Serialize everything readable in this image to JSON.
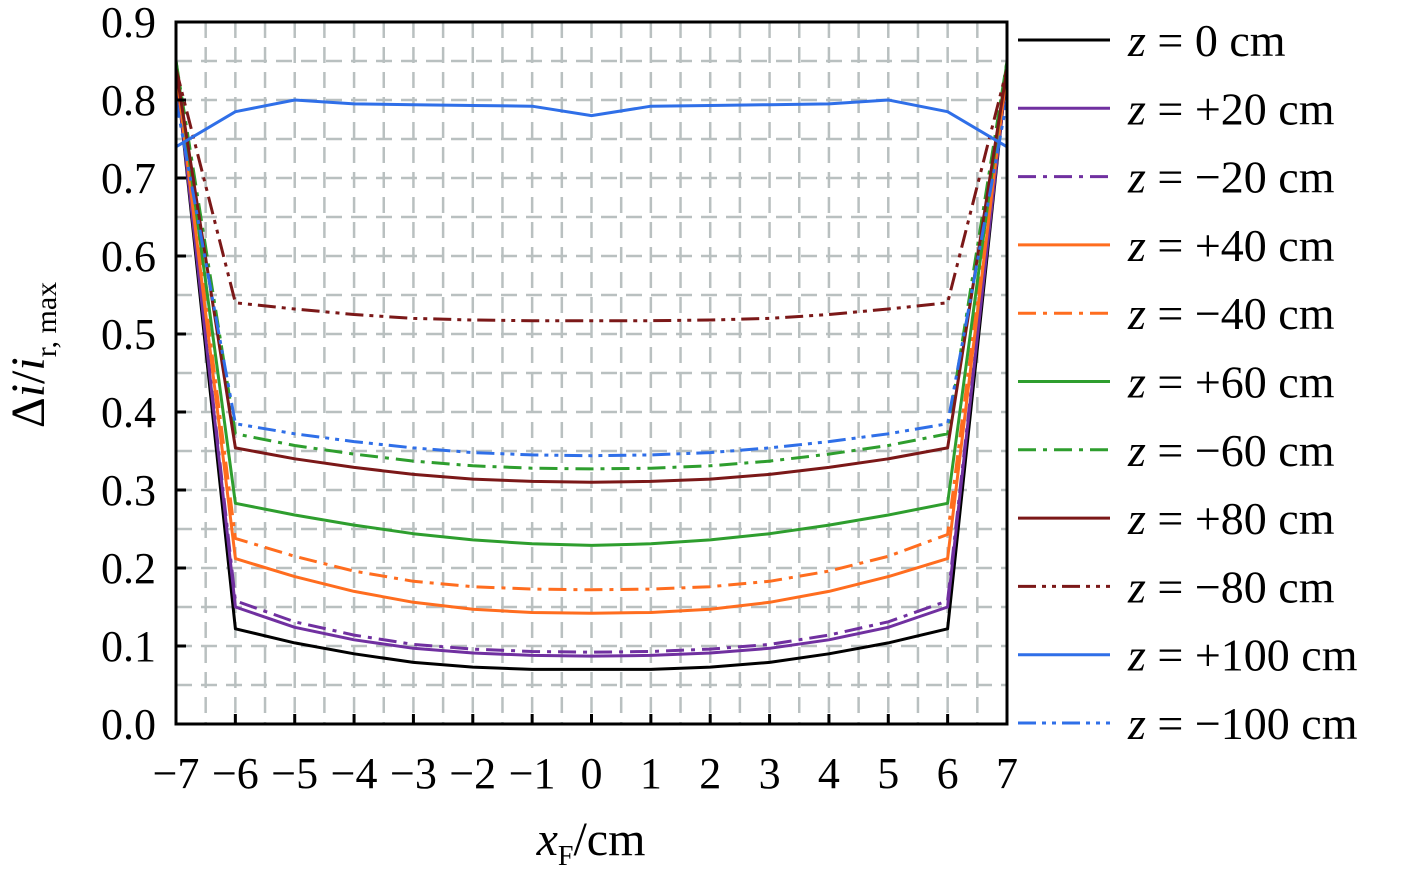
{
  "chart_data": {
    "type": "line",
    "xlabel": {
      "var": "x",
      "sub": "F",
      "unit": "/cm"
    },
    "ylabel": {
      "pre": "Δ",
      "var": "i",
      "mid": "/",
      "var2": "i",
      "sub": "r, max"
    },
    "xlim": [
      -7,
      7
    ],
    "ylim": [
      0,
      0.9
    ],
    "xticks": [
      -7,
      -6,
      -5,
      -4,
      -3,
      -2,
      -1,
      0,
      1,
      2,
      3,
      4,
      5,
      6,
      7
    ],
    "xtick_labels": [
      "−7",
      "−6",
      "−5",
      "−4",
      "−3",
      "−2",
      "−1",
      "0",
      "1",
      "2",
      "3",
      "4",
      "5",
      "6",
      "7"
    ],
    "yticks": [
      0,
      0.1,
      0.2,
      0.3,
      0.4,
      0.5,
      0.6,
      0.7,
      0.8,
      0.9
    ],
    "ytick_labels": [
      "0.0",
      "0.1",
      "0.2",
      "0.3",
      "0.4",
      "0.5",
      "0.6",
      "0.7",
      "0.8",
      "0.9"
    ],
    "grid": "dashed",
    "legend_position": "right",
    "x": [
      -7,
      -6,
      -5,
      -4,
      -3,
      -2,
      -1,
      0,
      1,
      2,
      3,
      4,
      5,
      6,
      7
    ],
    "series": [
      {
        "name": "z = 0 cm",
        "var": "z",
        "value": "= 0 cm",
        "color": "#000000",
        "style": "solid",
        "values": [
          0.84,
          0.122,
          0.104,
          0.09,
          0.079,
          0.073,
          0.07,
          0.07,
          0.07,
          0.073,
          0.079,
          0.09,
          0.104,
          0.122,
          0.84
        ]
      },
      {
        "name": "z = +20 cm",
        "var": "z",
        "value": "= +20 cm",
        "color": "#7030a0",
        "style": "solid",
        "values": [
          0.84,
          0.15,
          0.124,
          0.108,
          0.097,
          0.091,
          0.088,
          0.087,
          0.088,
          0.091,
          0.097,
          0.108,
          0.124,
          0.15,
          0.84
        ]
      },
      {
        "name": "z = −20 cm",
        "var": "z",
        "value": "= −20 cm",
        "color": "#7030a0",
        "style": "dashdot",
        "values": [
          0.84,
          0.158,
          0.131,
          0.114,
          0.102,
          0.096,
          0.093,
          0.092,
          0.093,
          0.096,
          0.102,
          0.114,
          0.131,
          0.158,
          0.84
        ]
      },
      {
        "name": "z = +40 cm",
        "var": "z",
        "value": "= +40 cm",
        "color": "#ff6d1f",
        "style": "solid",
        "values": [
          0.84,
          0.212,
          0.189,
          0.17,
          0.156,
          0.147,
          0.143,
          0.142,
          0.143,
          0.147,
          0.156,
          0.17,
          0.189,
          0.212,
          0.84
        ]
      },
      {
        "name": "z = −40 cm",
        "var": "z",
        "value": "= −40 cm",
        "color": "#ff6d1f",
        "style": "dashdot",
        "values": [
          0.84,
          0.238,
          0.215,
          0.196,
          0.183,
          0.176,
          0.173,
          0.172,
          0.173,
          0.176,
          0.183,
          0.196,
          0.215,
          0.243,
          0.84
        ]
      },
      {
        "name": "z = +60 cm",
        "var": "z",
        "value": "= +60 cm",
        "color": "#2e9e2e",
        "style": "solid",
        "values": [
          0.85,
          0.283,
          0.268,
          0.255,
          0.244,
          0.236,
          0.231,
          0.229,
          0.231,
          0.236,
          0.244,
          0.255,
          0.268,
          0.283,
          0.85
        ]
      },
      {
        "name": "z = −60 cm",
        "var": "z",
        "value": "= −60 cm",
        "color": "#2e9e2e",
        "style": "dashdot",
        "values": [
          0.85,
          0.372,
          0.357,
          0.346,
          0.337,
          0.331,
          0.328,
          0.327,
          0.328,
          0.331,
          0.337,
          0.346,
          0.357,
          0.372,
          0.85
        ]
      },
      {
        "name": "z = +80 cm",
        "var": "z",
        "value": "= +80 cm",
        "color": "#7b1818",
        "style": "solid",
        "values": [
          0.84,
          0.354,
          0.34,
          0.329,
          0.32,
          0.314,
          0.311,
          0.31,
          0.311,
          0.314,
          0.32,
          0.329,
          0.34,
          0.354,
          0.84
        ]
      },
      {
        "name": "z = −80 cm",
        "var": "z",
        "value": "= −80 cm",
        "color": "#7b1818",
        "style": "dashdotdot",
        "values": [
          0.84,
          0.54,
          0.532,
          0.525,
          0.52,
          0.518,
          0.517,
          0.517,
          0.517,
          0.518,
          0.52,
          0.525,
          0.532,
          0.54,
          0.84
        ]
      },
      {
        "name": "z = +100 cm",
        "var": "z",
        "value": "= +100 cm",
        "color": "#2f6fe8",
        "style": "solid",
        "values": [
          0.74,
          0.785,
          0.8,
          0.795,
          0.794,
          0.793,
          0.792,
          0.78,
          0.792,
          0.793,
          0.794,
          0.795,
          0.8,
          0.785,
          0.74
        ]
      },
      {
        "name": "z = −100 cm",
        "var": "z",
        "value": "= −100 cm",
        "color": "#2f6fe8",
        "style": "dashdotdot",
        "values": [
          0.8,
          0.385,
          0.372,
          0.362,
          0.354,
          0.348,
          0.345,
          0.344,
          0.345,
          0.348,
          0.354,
          0.362,
          0.372,
          0.385,
          0.8
        ]
      }
    ]
  }
}
